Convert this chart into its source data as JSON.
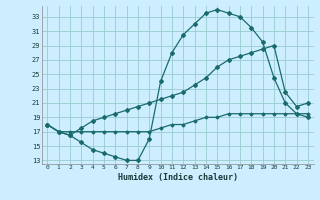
{
  "title": "",
  "xlabel": "Humidex (Indice chaleur)",
  "background_color": "#cceeff",
  "grid_color": "#99cccc",
  "line_color": "#1a6b6b",
  "xlim": [
    -0.5,
    23.5
  ],
  "ylim": [
    12.5,
    34.5
  ],
  "yticks": [
    13,
    15,
    17,
    19,
    21,
    23,
    25,
    27,
    29,
    31,
    33
  ],
  "xticks": [
    0,
    1,
    2,
    3,
    4,
    5,
    6,
    7,
    8,
    9,
    10,
    11,
    12,
    13,
    14,
    15,
    16,
    17,
    18,
    19,
    20,
    21,
    22,
    23
  ],
  "curve_max_x": [
    0,
    1,
    2,
    3,
    4,
    5,
    6,
    7,
    8,
    9,
    10,
    11,
    12,
    13,
    14,
    15,
    16,
    17,
    18,
    19,
    20,
    21,
    22,
    23
  ],
  "curve_max_y": [
    18.0,
    17.0,
    16.5,
    15.5,
    14.5,
    14.0,
    13.5,
    13.0,
    13.0,
    16.0,
    24.0,
    28.0,
    30.5,
    32.0,
    33.5,
    34.0,
    33.5,
    33.0,
    31.5,
    29.5,
    24.5,
    21.0,
    19.5,
    19.0
  ],
  "curve_mid_x": [
    0,
    1,
    2,
    3,
    4,
    5,
    6,
    7,
    8,
    9,
    10,
    11,
    12,
    13,
    14,
    15,
    16,
    17,
    18,
    19,
    20,
    21,
    22,
    23
  ],
  "curve_mid_y": [
    18.0,
    17.0,
    16.5,
    17.5,
    18.5,
    19.0,
    19.5,
    20.0,
    20.5,
    21.0,
    21.5,
    22.0,
    22.5,
    23.5,
    24.5,
    26.0,
    27.0,
    27.5,
    28.0,
    28.5,
    29.0,
    22.5,
    20.5,
    21.0
  ],
  "curve_min_x": [
    0,
    1,
    2,
    3,
    4,
    5,
    6,
    7,
    8,
    9,
    10,
    11,
    12,
    13,
    14,
    15,
    16,
    17,
    18,
    19,
    20,
    21,
    22,
    23
  ],
  "curve_min_y": [
    18.0,
    17.0,
    17.0,
    17.0,
    17.0,
    17.0,
    17.0,
    17.0,
    17.0,
    17.0,
    17.5,
    18.0,
    18.0,
    18.5,
    19.0,
    19.0,
    19.5,
    19.5,
    19.5,
    19.5,
    19.5,
    19.5,
    19.5,
    19.5
  ]
}
